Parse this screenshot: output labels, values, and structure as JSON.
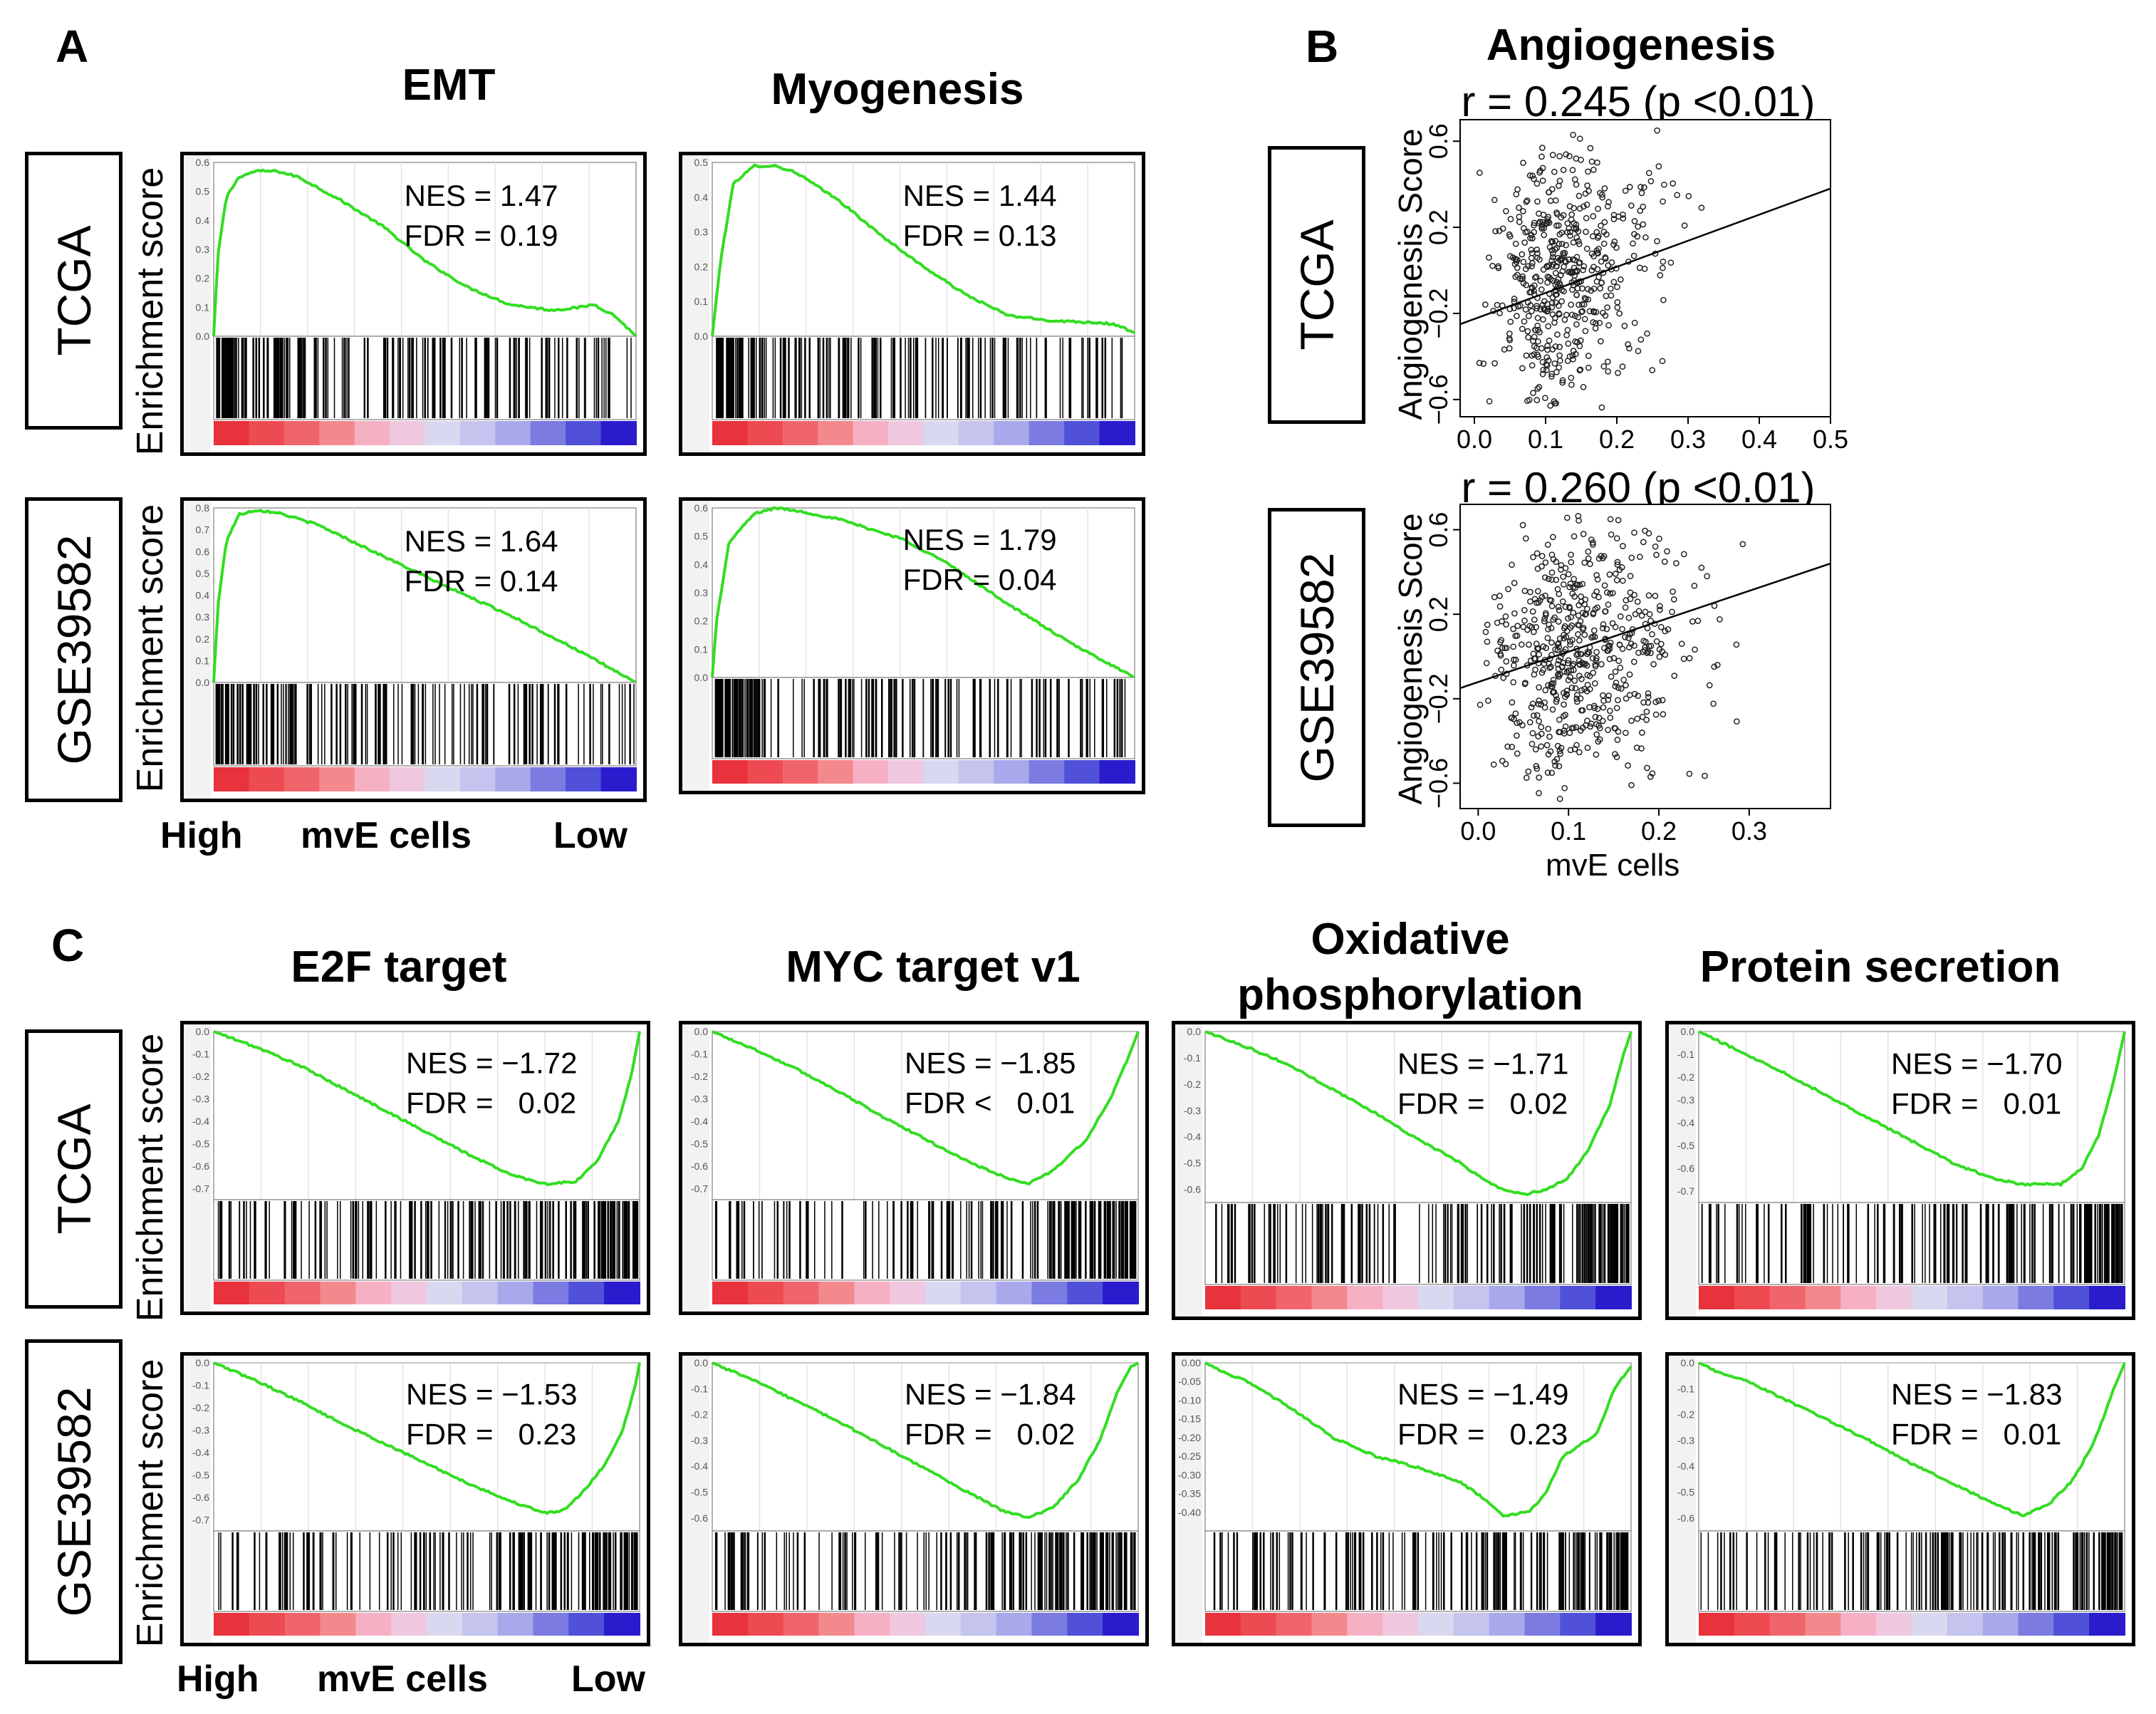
{
  "panel_labels": {
    "A": "A",
    "B": "B",
    "C": "C"
  },
  "row_labels": {
    "tcga": "TCGA",
    "gse": "GSE39582"
  },
  "y_axis_label": "Enrichment score",
  "bottom_axis": {
    "high": "High",
    "mid": "mvE cells",
    "low": "Low"
  },
  "colors": {
    "curve": "#33dd22",
    "hits": "#000000",
    "grid": "#e4e4e4"
  },
  "chart_data": [
    {
      "type": "line",
      "id": "A-EMT-TCGA",
      "title": "EMT",
      "row": "TCGA",
      "nes_label": "NES = 1.47",
      "fdr_label": "FDR = 0.19",
      "nes": 1.47,
      "fdr": 0.19,
      "ylim": [
        0,
        0.6
      ],
      "yticks": [
        "0.0",
        "0.1",
        "0.2",
        "0.3",
        "0.4",
        "0.5",
        "0.6"
      ],
      "curve": [
        [
          0,
          0
        ],
        [
          0.01,
          0.28
        ],
        [
          0.03,
          0.48
        ],
        [
          0.06,
          0.55
        ],
        [
          0.1,
          0.57
        ],
        [
          0.15,
          0.57
        ],
        [
          0.2,
          0.55
        ],
        [
          0.3,
          0.47
        ],
        [
          0.4,
          0.38
        ],
        [
          0.5,
          0.26
        ],
        [
          0.6,
          0.17
        ],
        [
          0.7,
          0.11
        ],
        [
          0.8,
          0.09
        ],
        [
          0.87,
          0.1
        ],
        [
          0.9,
          0.11
        ],
        [
          0.95,
          0.07
        ],
        [
          1.0,
          0.0
        ]
      ],
      "hit_density": "high-early"
    },
    {
      "type": "line",
      "id": "A-Myo-TCGA",
      "title": "Myogenesis",
      "row": "TCGA",
      "nes_label": "NES = 1.44",
      "fdr_label": "FDR = 0.13",
      "nes": 1.44,
      "fdr": 0.13,
      "ylim": [
        0,
        0.5
      ],
      "yticks": [
        "0.0",
        "0.1",
        "0.2",
        "0.3",
        "0.4",
        "0.5"
      ],
      "curve": [
        [
          0,
          0
        ],
        [
          0.02,
          0.22
        ],
        [
          0.05,
          0.44
        ],
        [
          0.1,
          0.49
        ],
        [
          0.15,
          0.49
        ],
        [
          0.2,
          0.47
        ],
        [
          0.3,
          0.39
        ],
        [
          0.4,
          0.29
        ],
        [
          0.5,
          0.2
        ],
        [
          0.6,
          0.12
        ],
        [
          0.7,
          0.06
        ],
        [
          0.8,
          0.045
        ],
        [
          0.9,
          0.04
        ],
        [
          0.95,
          0.035
        ],
        [
          1.0,
          0.01
        ]
      ],
      "hit_density": "high-early"
    },
    {
      "type": "line",
      "id": "A-EMT-GSE",
      "title": "EMT",
      "row": "GSE39582",
      "nes_label": "NES = 1.64",
      "fdr_label": "FDR = 0.14",
      "nes": 1.64,
      "fdr": 0.14,
      "ylim": [
        0,
        0.8
      ],
      "yticks": [
        "0.0",
        "0.1",
        "0.2",
        "0.3",
        "0.4",
        "0.5",
        "0.6",
        "0.7",
        "0.8"
      ],
      "curve": [
        [
          0,
          0
        ],
        [
          0.01,
          0.35
        ],
        [
          0.03,
          0.65
        ],
        [
          0.06,
          0.77
        ],
        [
          0.1,
          0.79
        ],
        [
          0.15,
          0.78
        ],
        [
          0.25,
          0.72
        ],
        [
          0.4,
          0.58
        ],
        [
          0.55,
          0.44
        ],
        [
          0.7,
          0.31
        ],
        [
          0.85,
          0.16
        ],
        [
          1.0,
          0.0
        ]
      ],
      "hit_density": "high-early"
    },
    {
      "type": "line",
      "id": "A-Myo-GSE",
      "title": "Myogenesis",
      "row": "GSE39582",
      "nes_label": "NES = 1.79",
      "fdr_label": "FDR = 0.04",
      "nes": 1.79,
      "fdr": 0.04,
      "ylim": [
        0,
        0.6
      ],
      "yticks": [
        "0.0",
        "0.1",
        "0.2",
        "0.3",
        "0.4",
        "0.5",
        "0.6"
      ],
      "curve": [
        [
          0,
          0
        ],
        [
          0.01,
          0.2
        ],
        [
          0.04,
          0.48
        ],
        [
          0.1,
          0.58
        ],
        [
          0.15,
          0.6
        ],
        [
          0.2,
          0.59
        ],
        [
          0.3,
          0.56
        ],
        [
          0.45,
          0.49
        ],
        [
          0.55,
          0.41
        ],
        [
          0.7,
          0.26
        ],
        [
          0.85,
          0.12
        ],
        [
          1.0,
          0.0
        ]
      ],
      "hit_density": "high-early"
    },
    {
      "type": "scatter",
      "id": "B-TCGA",
      "title": "Angiogenesis",
      "row": "TCGA",
      "corr_label": "r = 0.245 (p <0.01)",
      "r": 0.245,
      "p": "<0.01",
      "xlabel": "",
      "ylabel": "Angiogenesis Score",
      "xlim": [
        -0.02,
        0.5
      ],
      "ylim": [
        -0.68,
        0.7
      ],
      "xticks": [
        "0.0",
        "0.1",
        "0.2",
        "0.3",
        "0.4",
        "0.5"
      ],
      "yticks": [
        "−0.6",
        "−0.2",
        "0.2",
        "0.6"
      ],
      "fit_line": [
        [
          -0.02,
          -0.25
        ],
        [
          0.5,
          0.38
        ]
      ],
      "n_points": 520,
      "point_center": [
        0.12,
        0.0
      ]
    },
    {
      "type": "scatter",
      "id": "B-GSE",
      "title": "Angiogenesis",
      "row": "GSE39582",
      "corr_label": "r = 0.260 (p <0.01)",
      "r": 0.26,
      "p": "<0.01",
      "xlabel": "mvE cells",
      "ylabel": "Angiogenesis Score",
      "xlim": [
        -0.02,
        0.39
      ],
      "ylim": [
        -0.72,
        0.72
      ],
      "xticks": [
        "0.0",
        "0.1",
        "0.2",
        "0.3"
      ],
      "yticks": [
        "−0.6",
        "−0.2",
        "0.2",
        "0.6"
      ],
      "fit_line": [
        [
          -0.02,
          -0.15
        ],
        [
          0.39,
          0.44
        ]
      ],
      "n_points": 580,
      "point_center": [
        0.11,
        0.02
      ]
    },
    {
      "type": "line",
      "id": "C-E2F-TCGA",
      "title": "E2F target",
      "row": "TCGA",
      "nes_label": "NES = −1.72",
      "fdr_label": "FDR =   0.02",
      "nes": -1.72,
      "fdr": 0.02,
      "ylim": [
        -0.75,
        0
      ],
      "yticks": [
        "0.0",
        "-0.1",
        "-0.2",
        "-0.3",
        "-0.4",
        "-0.5",
        "-0.6",
        "-0.7"
      ],
      "curve": [
        [
          0,
          0
        ],
        [
          0.1,
          -0.07
        ],
        [
          0.2,
          -0.15
        ],
        [
          0.3,
          -0.25
        ],
        [
          0.4,
          -0.35
        ],
        [
          0.5,
          -0.45
        ],
        [
          0.6,
          -0.55
        ],
        [
          0.7,
          -0.64
        ],
        [
          0.78,
          -0.68
        ],
        [
          0.85,
          -0.67
        ],
        [
          0.9,
          -0.58
        ],
        [
          0.95,
          -0.4
        ],
        [
          0.98,
          -0.2
        ],
        [
          1.0,
          0.0
        ]
      ],
      "hit_density": "high-late"
    },
    {
      "type": "line",
      "id": "C-MYC-TCGA",
      "title": "MYC target v1",
      "row": "TCGA",
      "nes_label": "NES = −1.85",
      "fdr_label": "FDR <   0.01",
      "nes": -1.85,
      "fdr": 0.01,
      "ylim": [
        -0.75,
        0
      ],
      "yticks": [
        "0.0",
        "-0.1",
        "-0.2",
        "-0.3",
        "-0.4",
        "-0.5",
        "-0.6",
        "-0.7"
      ],
      "curve": [
        [
          0,
          0
        ],
        [
          0.1,
          -0.08
        ],
        [
          0.2,
          -0.17
        ],
        [
          0.3,
          -0.27
        ],
        [
          0.4,
          -0.38
        ],
        [
          0.5,
          -0.48
        ],
        [
          0.6,
          -0.58
        ],
        [
          0.7,
          -0.66
        ],
        [
          0.74,
          -0.68
        ],
        [
          0.8,
          -0.62
        ],
        [
          0.88,
          -0.48
        ],
        [
          0.94,
          -0.28
        ],
        [
          0.98,
          -0.1
        ],
        [
          1.0,
          0.0
        ]
      ],
      "hit_density": "high-late"
    },
    {
      "type": "line",
      "id": "C-OXPHOS-TCGA",
      "title": "Oxidative phosphorylation",
      "row": "TCGA",
      "nes_label": "NES = −1.71",
      "fdr_label": "FDR =   0.02",
      "nes": -1.71,
      "fdr": 0.02,
      "ylim": [
        -0.65,
        0
      ],
      "yticks": [
        "0.0",
        "-0.1",
        "-0.2",
        "-0.3",
        "-0.4",
        "-0.5",
        "-0.6"
      ],
      "curve": [
        [
          0,
          0
        ],
        [
          0.1,
          -0.06
        ],
        [
          0.2,
          -0.13
        ],
        [
          0.3,
          -0.22
        ],
        [
          0.4,
          -0.31
        ],
        [
          0.5,
          -0.41
        ],
        [
          0.6,
          -0.5
        ],
        [
          0.66,
          -0.57
        ],
        [
          0.7,
          -0.6
        ],
        [
          0.75,
          -0.62
        ],
        [
          0.8,
          -0.6
        ],
        [
          0.85,
          -0.56
        ],
        [
          0.9,
          -0.45
        ],
        [
          0.95,
          -0.28
        ],
        [
          0.98,
          -0.1
        ],
        [
          1.0,
          0.0
        ]
      ],
      "hit_density": "high-late"
    },
    {
      "type": "line",
      "id": "C-Protein-TCGA",
      "title": "Protein secretion",
      "row": "TCGA",
      "nes_label": "NES = −1.70",
      "fdr_label": "FDR =   0.01",
      "nes": -1.7,
      "fdr": 0.01,
      "ylim": [
        -0.75,
        0
      ],
      "yticks": [
        "0.0",
        "-0.1",
        "-0.2",
        "-0.3",
        "-0.4",
        "-0.5",
        "-0.6",
        "-0.7"
      ],
      "curve": [
        [
          0,
          0
        ],
        [
          0.1,
          -0.09
        ],
        [
          0.2,
          -0.18
        ],
        [
          0.3,
          -0.28
        ],
        [
          0.4,
          -0.38
        ],
        [
          0.5,
          -0.48
        ],
        [
          0.6,
          -0.58
        ],
        [
          0.7,
          -0.65
        ],
        [
          0.76,
          -0.67
        ],
        [
          0.85,
          -0.67
        ],
        [
          0.9,
          -0.6
        ],
        [
          0.94,
          -0.45
        ],
        [
          0.97,
          -0.25
        ],
        [
          1.0,
          0.0
        ]
      ],
      "hit_density": "high-late"
    },
    {
      "type": "line",
      "id": "C-E2F-GSE",
      "title": "E2F target",
      "row": "GSE39582",
      "nes_label": "NES = −1.53",
      "fdr_label": "FDR =   0.23",
      "nes": -1.53,
      "fdr": 0.23,
      "ylim": [
        -0.75,
        0
      ],
      "yticks": [
        "0.0",
        "-0.1",
        "-0.2",
        "-0.3",
        "-0.4",
        "-0.5",
        "-0.6",
        "-0.7"
      ],
      "curve": [
        [
          0,
          0
        ],
        [
          0.1,
          -0.08
        ],
        [
          0.2,
          -0.17
        ],
        [
          0.3,
          -0.27
        ],
        [
          0.4,
          -0.36
        ],
        [
          0.5,
          -0.45
        ],
        [
          0.6,
          -0.54
        ],
        [
          0.7,
          -0.62
        ],
        [
          0.78,
          -0.67
        ],
        [
          0.82,
          -0.66
        ],
        [
          0.87,
          -0.57
        ],
        [
          0.92,
          -0.45
        ],
        [
          0.96,
          -0.3
        ],
        [
          0.99,
          -0.1
        ],
        [
          1.0,
          0.0
        ]
      ],
      "hit_density": "high-late"
    },
    {
      "type": "line",
      "id": "C-MYC-GSE",
      "title": "MYC target v1",
      "row": "GSE39582",
      "nes_label": "NES = −1.84",
      "fdr_label": "FDR =   0.02",
      "nes": -1.84,
      "fdr": 0.02,
      "ylim": [
        -0.65,
        0
      ],
      "yticks": [
        "0.0",
        "-0.1",
        "-0.2",
        "-0.3",
        "-0.4",
        "-0.5",
        "-0.6"
      ],
      "curve": [
        [
          0,
          0
        ],
        [
          0.1,
          -0.07
        ],
        [
          0.2,
          -0.15
        ],
        [
          0.3,
          -0.23
        ],
        [
          0.4,
          -0.32
        ],
        [
          0.5,
          -0.41
        ],
        [
          0.6,
          -0.5
        ],
        [
          0.68,
          -0.57
        ],
        [
          0.74,
          -0.6
        ],
        [
          0.8,
          -0.56
        ],
        [
          0.86,
          -0.45
        ],
        [
          0.91,
          -0.3
        ],
        [
          0.95,
          -0.12
        ],
        [
          0.98,
          -0.02
        ],
        [
          1.0,
          0.0
        ]
      ],
      "hit_density": "high-late"
    },
    {
      "type": "line",
      "id": "C-OXPHOS-GSE",
      "title": "Oxidative phosphorylation",
      "row": "GSE39582",
      "nes_label": "NES = −1.49",
      "fdr_label": "FDR =   0.23",
      "nes": -1.49,
      "fdr": 0.23,
      "ylim": [
        -0.45,
        0
      ],
      "yticks": [
        "0.00",
        "-0.05",
        "-0.10",
        "-0.15",
        "-0.20",
        "-0.25",
        "-0.30",
        "-0.35",
        "-0.40"
      ],
      "curve": [
        [
          0,
          0
        ],
        [
          0.05,
          -0.03
        ],
        [
          0.1,
          -0.05
        ],
        [
          0.2,
          -0.12
        ],
        [
          0.3,
          -0.2
        ],
        [
          0.4,
          -0.25
        ],
        [
          0.5,
          -0.28
        ],
        [
          0.6,
          -0.32
        ],
        [
          0.65,
          -0.36
        ],
        [
          0.7,
          -0.41
        ],
        [
          0.76,
          -0.4
        ],
        [
          0.8,
          -0.35
        ],
        [
          0.84,
          -0.25
        ],
        [
          0.88,
          -0.22
        ],
        [
          0.92,
          -0.19
        ],
        [
          0.96,
          -0.07
        ],
        [
          1.0,
          -0.01
        ]
      ],
      "hit_density": "high-late"
    },
    {
      "type": "line",
      "id": "C-Protein-GSE",
      "title": "Protein secretion",
      "row": "GSE39582",
      "nes_label": "NES = −1.83",
      "fdr_label": "FDR =   0.01",
      "nes": -1.83,
      "fdr": 0.01,
      "ylim": [
        -0.65,
        0
      ],
      "yticks": [
        "0.0",
        "-0.1",
        "-0.2",
        "-0.3",
        "-0.4",
        "-0.5",
        "-0.6"
      ],
      "curve": [
        [
          0,
          0
        ],
        [
          0.05,
          -0.04
        ],
        [
          0.1,
          -0.06
        ],
        [
          0.2,
          -0.14
        ],
        [
          0.3,
          -0.22
        ],
        [
          0.4,
          -0.3
        ],
        [
          0.5,
          -0.39
        ],
        [
          0.6,
          -0.47
        ],
        [
          0.7,
          -0.55
        ],
        [
          0.76,
          -0.59
        ],
        [
          0.82,
          -0.55
        ],
        [
          0.88,
          -0.45
        ],
        [
          0.93,
          -0.3
        ],
        [
          0.97,
          -0.12
        ],
        [
          1.0,
          0.0
        ]
      ],
      "hit_density": "high-late"
    }
  ]
}
